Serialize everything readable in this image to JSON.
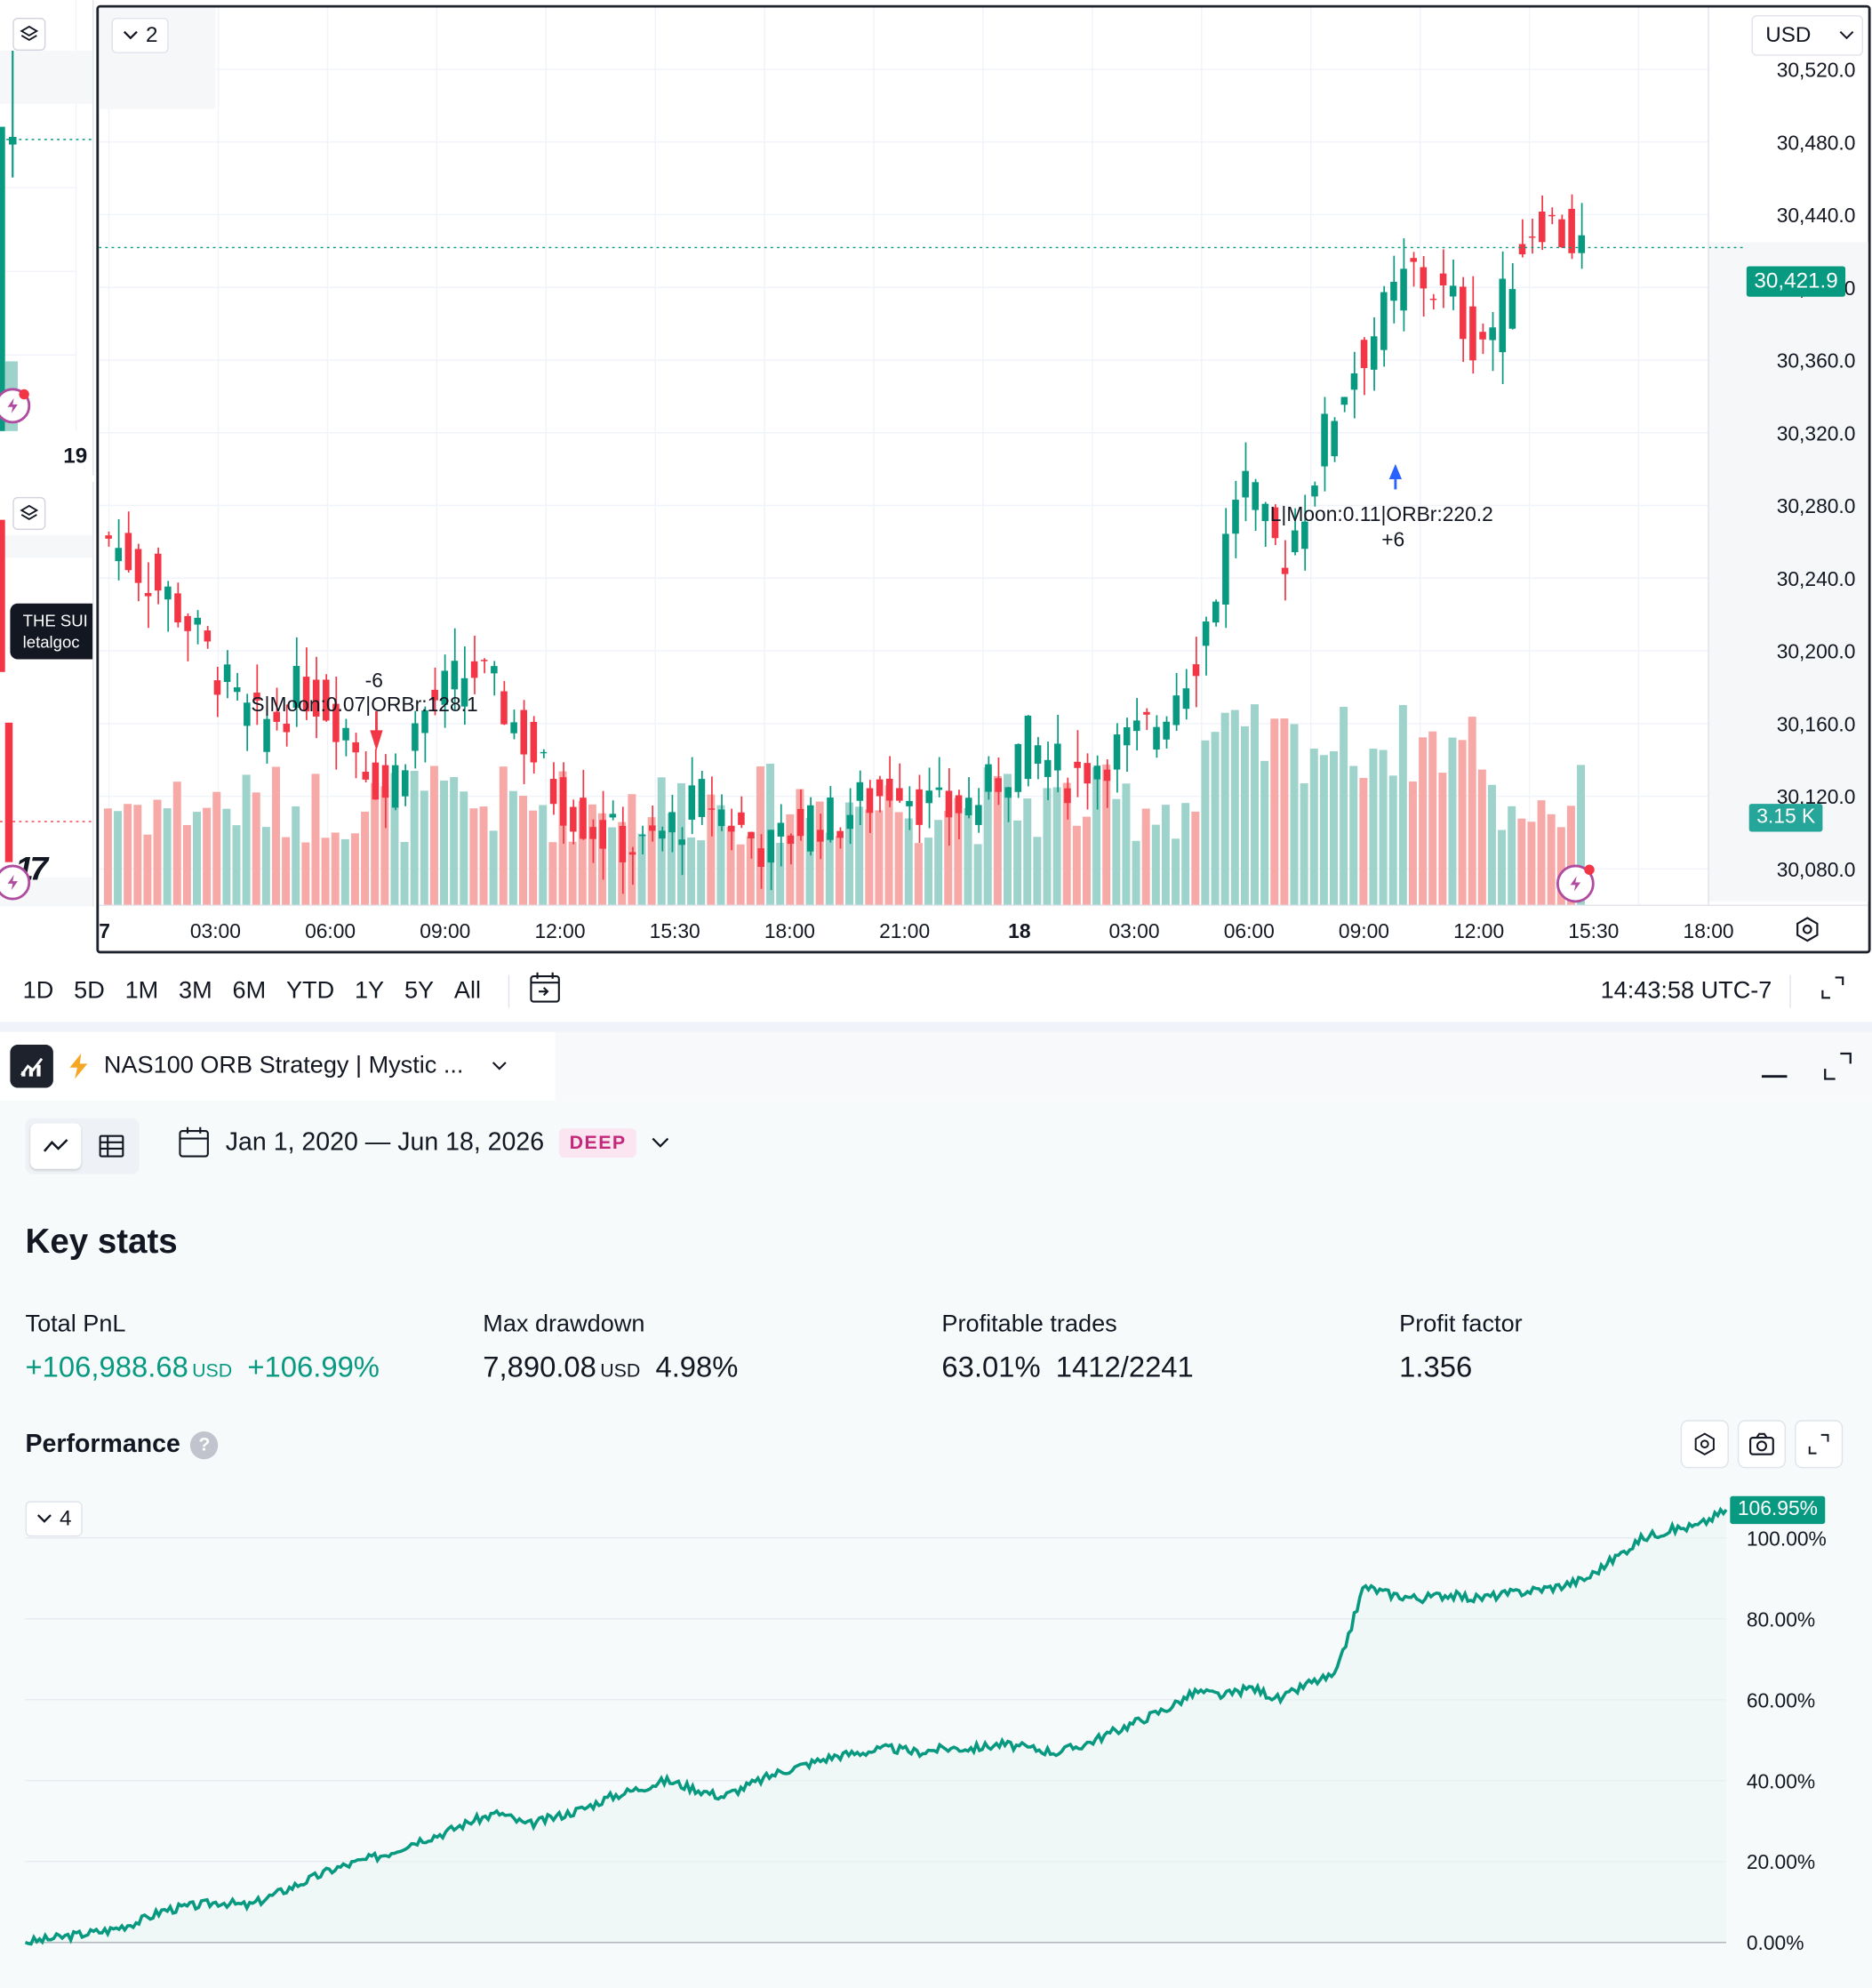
{
  "left_pane": {
    "date_label": "19",
    "indicator_line1": "THE SUI",
    "indicator_line2": "letalgoc",
    "logo_text": "17"
  },
  "main_chart": {
    "legend_count": "2",
    "currency": "USD",
    "price_ticks": [
      "30,520.0",
      "30,480.0",
      "30,440.0",
      "30,400.0",
      "30,360.0",
      "30,320.0",
      "30,280.0",
      "30,240.0",
      "30,200.0",
      "30,160.0",
      "30,120.0",
      "30,080.0"
    ],
    "last_price": "30,421.9",
    "volume_tag": "3.15 K",
    "time_ticks": [
      "7",
      "03:00",
      "06:00",
      "09:00",
      "12:00",
      "15:30",
      "18:00",
      "21:00",
      "18",
      "03:00",
      "06:00",
      "09:00",
      "12:00",
      "15:30",
      "18:00"
    ],
    "short_label": "S|Moon:0.07|ORBr:128.1",
    "short_qty": "-6",
    "long_label": "L|Moon:0.11|ORBr:220.2",
    "long_qty": "+6",
    "colors": {
      "up": "#089981",
      "down": "#f23645",
      "vol_up": "#9ed3cc",
      "vol_down": "#f7a9a7"
    }
  },
  "timeframes": [
    "1D",
    "5D",
    "1M",
    "3M",
    "6M",
    "YTD",
    "1Y",
    "5Y",
    "All"
  ],
  "clock": "14:43:58 UTC-7",
  "strategy": {
    "title": "NAS100 ORB Strategy | Mystic ...",
    "date_range": "Jan 1, 2020 — Jun 18, 2026",
    "badge": "DEEP",
    "key_stats_title": "Key stats",
    "stats": [
      {
        "label": "Total PnL",
        "value": "+106,988.68",
        "unit": "USD",
        "extra": "+106.99%"
      },
      {
        "label": "Max drawdown",
        "value": "7,890.08",
        "unit": "USD",
        "extra": "4.98%"
      },
      {
        "label": "Profitable trades",
        "value": "63.01%",
        "unit": "",
        "extra": "1412/2241"
      },
      {
        "label": "Profit factor",
        "value": "1.356",
        "unit": "",
        "extra": ""
      }
    ],
    "performance_title": "Performance",
    "perf_legend_count": "4",
    "perf_last": "106.95%",
    "perf_ticks": [
      "100.00%",
      "80.00%",
      "60.00%",
      "40.00%",
      "20.00%",
      "0.00%"
    ]
  },
  "chart_data": [
    {
      "type": "line",
      "title": "Performance",
      "ylabel": "",
      "ylim": [
        0,
        106.95
      ],
      "y_ticks": [
        "0.00%",
        "20.00%",
        "40.00%",
        "60.00%",
        "80.00%",
        "100.00%"
      ],
      "series": [
        {
          "values": [
            0,
            1,
            2,
            3,
            5,
            8,
            9,
            10,
            9,
            12,
            15,
            18,
            20,
            22,
            25,
            27,
            30,
            32,
            29,
            31,
            33,
            36,
            38,
            40,
            38,
            36,
            39,
            42,
            44,
            46,
            47,
            48,
            47,
            48,
            48,
            49,
            48,
            47,
            49,
            52,
            55,
            58,
            62,
            61,
            63,
            60,
            64,
            66,
            88,
            86,
            85,
            86,
            85,
            86,
            87,
            88,
            90,
            95,
            100,
            102,
            103,
            106.95
          ]
        }
      ]
    },
    {
      "type": "candlestick",
      "ylim": [
        30060,
        30540
      ],
      "y_ticks": [
        "30,080.0",
        "30,120.0",
        "30,160.0",
        "30,200.0",
        "30,240.0",
        "30,280.0",
        "30,320.0",
        "30,360.0",
        "30,400.0",
        "30,440.0",
        "30,480.0",
        "30,520.0"
      ],
      "x_ticks": [
        "7",
        "03:00",
        "06:00",
        "09:00",
        "12:00",
        "15:30",
        "18:00",
        "21:00",
        "18",
        "03:00",
        "06:00",
        "09:00",
        "12:00",
        "15:30",
        "18:00"
      ],
      "closes": [
        30262,
        30250,
        30238,
        30228,
        30210,
        30190,
        30170,
        30158,
        30165,
        30180,
        30172,
        30160,
        30140,
        30120,
        30150,
        30170,
        30180,
        30190,
        30178,
        30160,
        30140,
        30120,
        30110,
        30100,
        30095,
        30090,
        30100,
        30110,
        30120,
        30108,
        30098,
        30090,
        30100,
        30110,
        30105,
        30115,
        30120,
        30130,
        30118,
        30110,
        30115,
        30120,
        30135,
        30150,
        30140,
        30130,
        30138,
        30145,
        30150,
        30160,
        30180,
        30200,
        30240,
        30300,
        30270,
        30250,
        30280,
        30320,
        30350,
        30370,
        30390,
        30410,
        30400,
        30390,
        30370,
        30380,
        30420,
        30440,
        30430,
        30421.9
      ]
    }
  ]
}
